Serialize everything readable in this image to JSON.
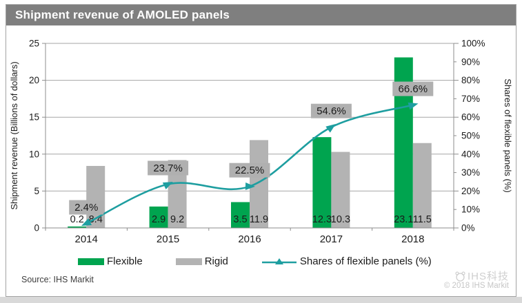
{
  "title": "Shipment revenue of AMOLED panels",
  "source": "Source:  IHS Markit",
  "watermark": {
    "brand": "IHS科技",
    "copyright": "© 2018  IHS Markit"
  },
  "legend": [
    {
      "label": "Flexible",
      "type": "bar",
      "color": "#00A44F"
    },
    {
      "label": "Rigid",
      "type": "bar",
      "color": "#B3B3B3"
    },
    {
      "label": "Shares of flexible panels (%)",
      "type": "line",
      "color": "#1E9EA0"
    }
  ],
  "colors": {
    "title_bar": "#7F7F7F",
    "flexible_green": "#00A44F",
    "rigid_gray": "#B3B3B3",
    "share_line_teal": "#1E9EA0",
    "label_box_gray": "#B0B0B0",
    "gridline": "#A6A6A6",
    "axis": "#8C8C8C"
  },
  "chart_data": {
    "type": "bar",
    "subtype": "grouped bars with secondary-axis line",
    "title": "Shipment revenue of AMOLED panels",
    "categories": [
      "2014",
      "2015",
      "2016",
      "2017",
      "2018"
    ],
    "series": [
      {
        "name": "Flexible",
        "type": "bar",
        "axis": "left",
        "color": "#00A44F",
        "values": [
          0.2,
          2.9,
          3.5,
          12.3,
          23.1
        ],
        "labels": [
          "0.2",
          "2.9",
          "3.5",
          "12.3",
          "23.1"
        ]
      },
      {
        "name": "Rigid",
        "type": "bar",
        "axis": "left",
        "color": "#B3B3B3",
        "values": [
          8.4,
          9.2,
          11.9,
          10.3,
          11.5
        ],
        "labels": [
          "8.4",
          "9.2",
          "11.9",
          "10.3",
          "11.5"
        ]
      },
      {
        "name": "Shares of flexible panels (%)",
        "type": "line",
        "axis": "right",
        "color": "#1E9EA0",
        "marker": "triangle-arrow",
        "smooth": true,
        "values": [
          2.4,
          23.7,
          22.5,
          54.6,
          66.6
        ],
        "labels": [
          "2.4%",
          "23.7%",
          "22.5%",
          "54.6%",
          "66.6%"
        ]
      }
    ],
    "left_axis": {
      "label": "Shipment revenue (Billions of dollars)",
      "min": 0,
      "max": 25,
      "step": 5,
      "ticks": [
        "0",
        "5",
        "10",
        "15",
        "20",
        "25"
      ]
    },
    "right_axis": {
      "label": "Shares of flexible panels  (%)",
      "min": 0,
      "max": 100,
      "step": 10,
      "ticks": [
        "0%",
        "10%",
        "20%",
        "30%",
        "40%",
        "50%",
        "60%",
        "70%",
        "80%",
        "90%",
        "100%"
      ]
    },
    "grid": true,
    "legend_position": "bottom"
  }
}
